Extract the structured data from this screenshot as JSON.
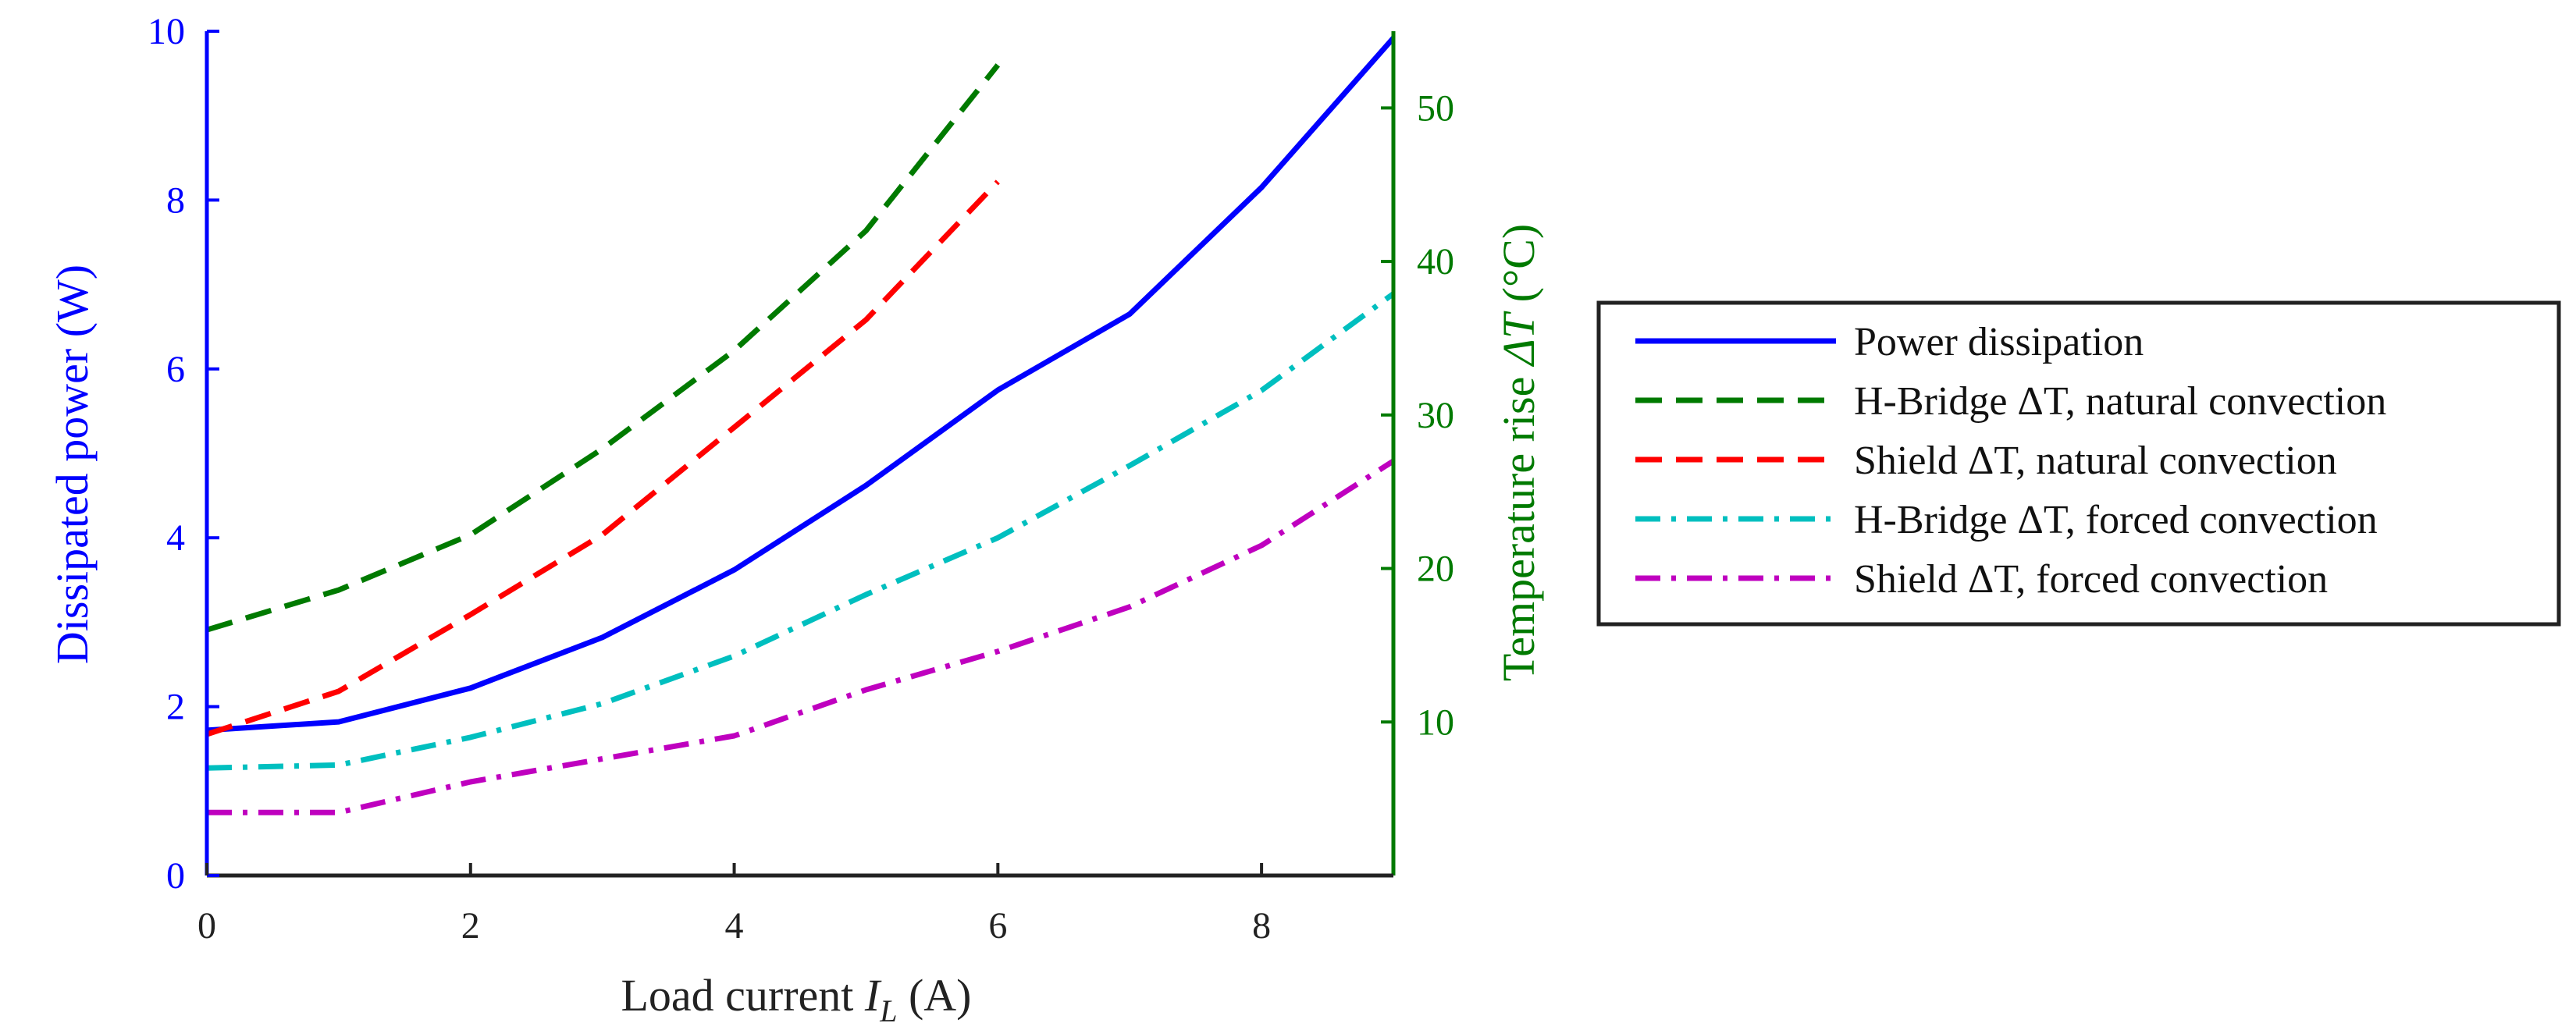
{
  "chart_data": {
    "type": "line",
    "x_axis": {
      "label_main": "Load current ",
      "label_sym": "I",
      "label_sub": "L",
      "label_unit": " (A)",
      "range": [
        0,
        9
      ],
      "ticks": [
        0,
        2,
        4,
        6,
        8
      ],
      "tick_labels": [
        "0",
        "2",
        "4",
        "6",
        "8"
      ]
    },
    "y_left": {
      "label": "Dissipated power (W)",
      "range": [
        0,
        10
      ],
      "ticks": [
        0,
        2,
        4,
        6,
        8,
        10
      ],
      "tick_labels": [
        "0",
        "2",
        "4",
        "6",
        "8",
        "10"
      ],
      "color": "#0000ff"
    },
    "y_right": {
      "label_main": "Temperature rise ",
      "label_sym": "ΔT",
      "label_unit": " (°C)",
      "range": [
        0,
        55
      ],
      "ticks": [
        10,
        20,
        30,
        40,
        50
      ],
      "tick_labels": [
        "10",
        "20",
        "30",
        "40",
        "50"
      ],
      "color": "#007a00"
    },
    "series": [
      {
        "name": "Power dissipation",
        "axis": "left",
        "color": "#0000ff",
        "dash": "solid",
        "x": [
          0,
          1,
          2,
          3,
          4,
          5,
          6,
          7,
          8,
          9
        ],
        "y": [
          1.72,
          1.82,
          2.22,
          2.82,
          3.62,
          4.62,
          5.75,
          6.65,
          8.15,
          9.92
        ]
      },
      {
        "name": "H-Bridge ΔT, natural convection",
        "axis": "right",
        "color": "#007a00",
        "dash": "dashed",
        "x": [
          0,
          1,
          2,
          3,
          4,
          5,
          6
        ],
        "y": [
          16.0,
          18.6,
          22.2,
          27.8,
          34.2,
          42.0,
          52.8
        ]
      },
      {
        "name": "Shield ΔT, natural convection",
        "axis": "right",
        "color": "#ff0000",
        "dash": "dashed",
        "x": [
          0,
          1,
          2,
          3,
          4,
          5,
          6
        ],
        "y": [
          9.2,
          12.0,
          17.0,
          22.2,
          29.2,
          36.2,
          45.2
        ]
      },
      {
        "name": "H-Bridge ΔT, forced convection",
        "axis": "right",
        "color": "#00bfbf",
        "dash": "dashdot",
        "x": [
          0,
          1,
          2,
          3,
          4,
          5,
          6,
          7,
          8,
          9
        ],
        "y": [
          7.0,
          7.2,
          9.0,
          11.2,
          14.3,
          18.3,
          22.0,
          26.7,
          31.6,
          37.9
        ]
      },
      {
        "name": "Shield ΔT, forced convection",
        "axis": "right",
        "color": "#bf00bf",
        "dash": "dashdot",
        "x": [
          0,
          1,
          2,
          3,
          4,
          5,
          6,
          7,
          8,
          9
        ],
        "y": [
          4.1,
          4.1,
          6.1,
          7.6,
          9.1,
          12.1,
          14.6,
          17.5,
          21.5,
          27.0
        ]
      }
    ],
    "legend": {
      "placement": "right-outside",
      "entries": [
        "Power dissipation",
        "H-Bridge ΔT, natural convection",
        "Shield ΔT, natural convection",
        "H-Bridge ΔT, forced convection",
        "Shield ΔT, forced convection"
      ]
    },
    "grid": false
  }
}
